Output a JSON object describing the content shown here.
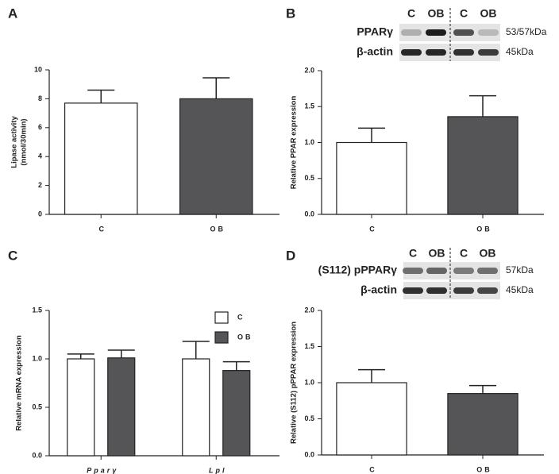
{
  "chart_data": [
    {
      "type": "bar",
      "panel": "A",
      "ylabel": [
        "Lipase activity",
        "(nmol/30min)"
      ],
      "categories": [
        "C",
        "OB"
      ],
      "values": [
        7.7,
        8.0
      ],
      "errors": [
        0.9,
        1.45
      ],
      "colors": [
        "#ffffff",
        "#555557"
      ],
      "ylim": [
        0,
        10
      ],
      "yticks": [
        0,
        2,
        4,
        6,
        8,
        10
      ]
    },
    {
      "type": "bar",
      "panel": "B",
      "ylabel": [
        "Relative PPAR expression"
      ],
      "categories": [
        "C",
        "OB"
      ],
      "values": [
        1.0,
        1.36
      ],
      "errors": [
        0.2,
        0.29
      ],
      "colors": [
        "#ffffff",
        "#555557"
      ],
      "ylim": [
        0,
        2
      ],
      "yticks": [
        {
          "value": 0,
          "label": "0.0"
        },
        0.5,
        {
          "value": 1,
          "label": "1.0"
        },
        1.5,
        {
          "value": 2,
          "label": "2.0"
        }
      ],
      "blot": {
        "lanes": [
          "C",
          "OB",
          "C",
          "OB"
        ],
        "rows": [
          {
            "name": "PPARγ",
            "size": "53/57kDa"
          },
          {
            "name": "β-actin",
            "size": "45kDa"
          }
        ]
      }
    },
    {
      "type": "grouped_bar",
      "panel": "C",
      "ylabel": [
        "Relative mRNA expression"
      ],
      "categories": [
        "Pparγ",
        "Lpl"
      ],
      "series": [
        {
          "name": "C",
          "color": "#ffffff",
          "values": [
            1.0,
            1.0
          ],
          "errors": [
            0.05,
            0.18
          ]
        },
        {
          "name": "OB",
          "color": "#555557",
          "values": [
            1.01,
            0.88
          ],
          "errors": [
            0.08,
            0.09
          ]
        }
      ],
      "ylim": [
        0,
        1.5
      ],
      "yticks": [
        {
          "value": 0,
          "label": "0.0"
        },
        0.5,
        {
          "value": 1,
          "label": "1.0"
        },
        1.5
      ],
      "legend": "top-right"
    },
    {
      "type": "bar",
      "panel": "D",
      "ylabel": [
        "Relative (S112) pPPAR expression"
      ],
      "categories": [
        "C",
        "OB"
      ],
      "values": [
        1.0,
        0.85
      ],
      "errors": [
        0.18,
        0.11
      ],
      "colors": [
        "#ffffff",
        "#555557"
      ],
      "ylim": [
        0,
        2
      ],
      "yticks": [
        {
          "value": 0,
          "label": "0.0"
        },
        0.5,
        {
          "value": 1,
          "label": "1.0"
        },
        1.5,
        {
          "value": 2,
          "label": "2.0"
        }
      ],
      "blot": {
        "lanes": [
          "C",
          "OB",
          "C",
          "OB"
        ],
        "rows": [
          {
            "name": "(S112) pPPARγ",
            "size": "57kDa"
          },
          {
            "name": "β-actin",
            "size": "45kDa"
          }
        ]
      }
    }
  ]
}
